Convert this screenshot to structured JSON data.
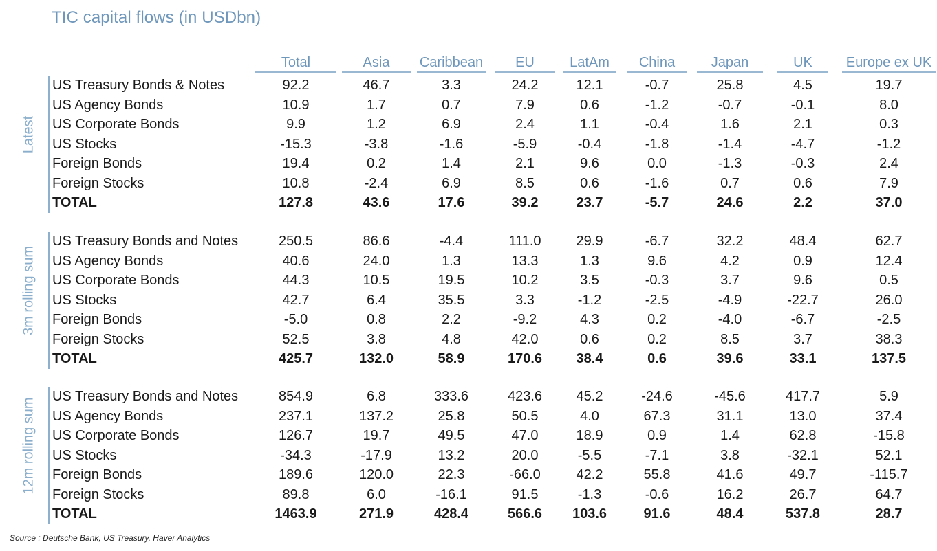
{
  "chart_data": {
    "type": "table",
    "title": "TIC capital flows (in USDbn)",
    "columns": [
      "Total",
      "Asia",
      "Caribbean",
      "EU",
      "LatAm",
      "China",
      "Japan",
      "UK",
      "Europe ex UK"
    ],
    "sections": [
      {
        "label": "Latest",
        "rows": [
          {
            "label": "US Treasury Bonds & Notes",
            "values": [
              "92.2",
              "46.7",
              "3.3",
              "24.2",
              "12.1",
              "-0.7",
              "25.8",
              "4.5",
              "19.7"
            ]
          },
          {
            "label": "US Agency Bonds",
            "values": [
              "10.9",
              "1.7",
              "0.7",
              "7.9",
              "0.6",
              "-1.2",
              "-0.7",
              "-0.1",
              "8.0"
            ]
          },
          {
            "label": "US Corporate Bonds",
            "values": [
              "9.9",
              "1.2",
              "6.9",
              "2.4",
              "1.1",
              "-0.4",
              "1.6",
              "2.1",
              "0.3"
            ]
          },
          {
            "label": "US Stocks",
            "values": [
              "-15.3",
              "-3.8",
              "-1.6",
              "-5.9",
              "-0.4",
              "-1.8",
              "-1.4",
              "-4.7",
              "-1.2"
            ]
          },
          {
            "label": "Foreign Bonds",
            "values": [
              "19.4",
              "0.2",
              "1.4",
              "2.1",
              "9.6",
              "0.0",
              "-1.3",
              "-0.3",
              "2.4"
            ]
          },
          {
            "label": "Foreign Stocks",
            "values": [
              "10.8",
              "-2.4",
              "6.9",
              "8.5",
              "0.6",
              "-1.6",
              "0.7",
              "0.6",
              "7.9"
            ]
          },
          {
            "label": "TOTAL",
            "total": true,
            "values": [
              "127.8",
              "43.6",
              "17.6",
              "39.2",
              "23.7",
              "-5.7",
              "24.6",
              "2.2",
              "37.0"
            ]
          }
        ]
      },
      {
        "label": "3m rolling sum",
        "rows": [
          {
            "label": "US Treasury Bonds and Notes",
            "values": [
              "250.5",
              "86.6",
              "-4.4",
              "111.0",
              "29.9",
              "-6.7",
              "32.2",
              "48.4",
              "62.7"
            ]
          },
          {
            "label": "US Agency Bonds",
            "values": [
              "40.6",
              "24.0",
              "1.3",
              "13.3",
              "1.3",
              "9.6",
              "4.2",
              "0.9",
              "12.4"
            ]
          },
          {
            "label": "US Corporate Bonds",
            "values": [
              "44.3",
              "10.5",
              "19.5",
              "10.2",
              "3.5",
              "-0.3",
              "3.7",
              "9.6",
              "0.5"
            ]
          },
          {
            "label": "US Stocks",
            "values": [
              "42.7",
              "6.4",
              "35.5",
              "3.3",
              "-1.2",
              "-2.5",
              "-4.9",
              "-22.7",
              "26.0"
            ]
          },
          {
            "label": "Foreign Bonds",
            "values": [
              "-5.0",
              "0.8",
              "2.2",
              "-9.2",
              "4.3",
              "0.2",
              "-4.0",
              "-6.7",
              "-2.5"
            ]
          },
          {
            "label": "Foreign Stocks",
            "values": [
              "52.5",
              "3.8",
              "4.8",
              "42.0",
              "0.6",
              "0.2",
              "8.5",
              "3.7",
              "38.3"
            ]
          },
          {
            "label": "TOTAL",
            "total": true,
            "values": [
              "425.7",
              "132.0",
              "58.9",
              "170.6",
              "38.4",
              "0.6",
              "39.6",
              "33.1",
              "137.5"
            ]
          }
        ]
      },
      {
        "label": "12m rolling sum",
        "rows": [
          {
            "label": "US Treasury Bonds and Notes",
            "values": [
              "854.9",
              "6.8",
              "333.6",
              "423.6",
              "45.2",
              "-24.6",
              "-45.6",
              "417.7",
              "5.9"
            ]
          },
          {
            "label": "US Agency Bonds",
            "values": [
              "237.1",
              "137.2",
              "25.8",
              "50.5",
              "4.0",
              "67.3",
              "31.1",
              "13.0",
              "37.4"
            ]
          },
          {
            "label": "US Corporate Bonds",
            "values": [
              "126.7",
              "19.7",
              "49.5",
              "47.0",
              "18.9",
              "0.9",
              "1.4",
              "62.8",
              "-15.8"
            ]
          },
          {
            "label": "US Stocks",
            "values": [
              "-34.3",
              "-17.9",
              "13.2",
              "20.0",
              "-5.5",
              "-7.1",
              "3.8",
              "-32.1",
              "52.1"
            ]
          },
          {
            "label": "Foreign Bonds",
            "values": [
              "189.6",
              "120.0",
              "22.3",
              "-66.0",
              "42.2",
              "55.8",
              "41.6",
              "49.7",
              "-115.7"
            ]
          },
          {
            "label": "Foreign Stocks",
            "values": [
              "89.8",
              "6.0",
              "-16.1",
              "91.5",
              "-1.3",
              "-0.6",
              "16.2",
              "26.7",
              "64.7"
            ]
          },
          {
            "label": "TOTAL",
            "total": true,
            "values": [
              "1463.9",
              "271.9",
              "428.4",
              "566.6",
              "103.6",
              "91.6",
              "48.4",
              "537.8",
              "28.7"
            ]
          }
        ]
      }
    ],
    "source": "Source : Deutsche Bank, US Treasury, Haver Analytics"
  }
}
